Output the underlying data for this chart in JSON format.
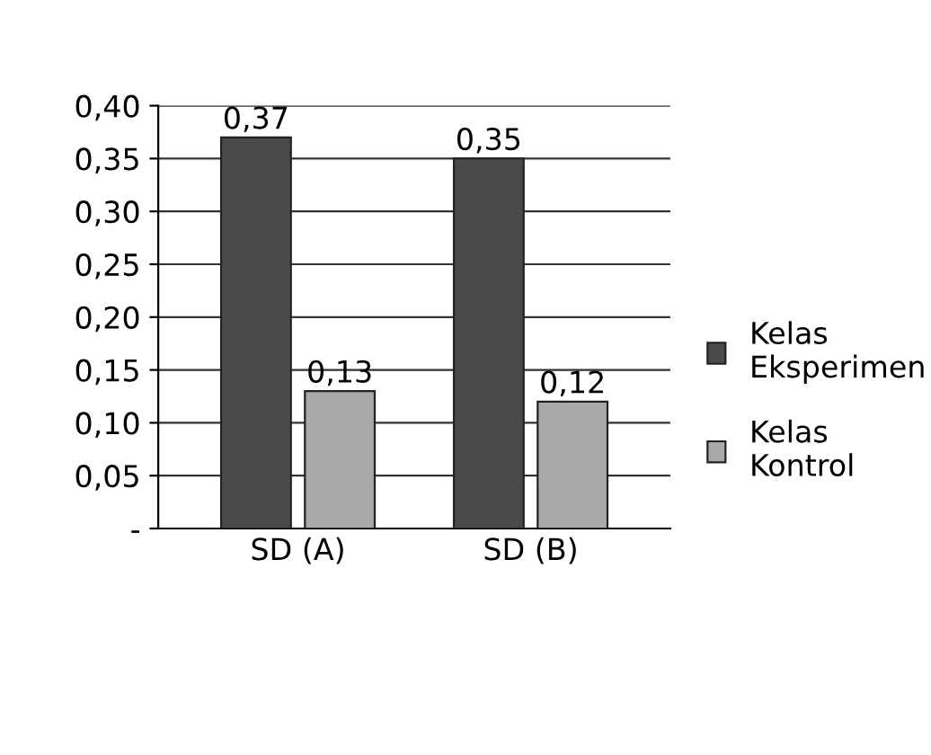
{
  "chart_data": {
    "type": "bar",
    "categories": [
      "SD (A)",
      "SD (B)"
    ],
    "series": [
      {
        "name": "Kelas\nEksperimen",
        "color": "#4a4a4a",
        "values": [
          0.37,
          0.35
        ],
        "value_labels": [
          "0,37",
          "0,35"
        ]
      },
      {
        "name": "Kelas\nKontrol",
        "color": "#a9a9a9",
        "values": [
          0.13,
          0.12
        ],
        "value_labels": [
          "0,13",
          "0,12"
        ]
      }
    ],
    "ylim": [
      0,
      0.4
    ],
    "yticks": [
      {
        "value": 0,
        "label": "-"
      },
      {
        "value": 0.05,
        "label": "0,05"
      },
      {
        "value": 0.1,
        "label": "0,10"
      },
      {
        "value": 0.15,
        "label": "0,15"
      },
      {
        "value": 0.2,
        "label": "0,20"
      },
      {
        "value": 0.25,
        "label": "0,25"
      },
      {
        "value": 0.3,
        "label": "0,30"
      },
      {
        "value": 0.35,
        "label": "0,35"
      },
      {
        "value": 0.4,
        "label": "0,40"
      }
    ],
    "grid": "y",
    "legend": "right"
  }
}
